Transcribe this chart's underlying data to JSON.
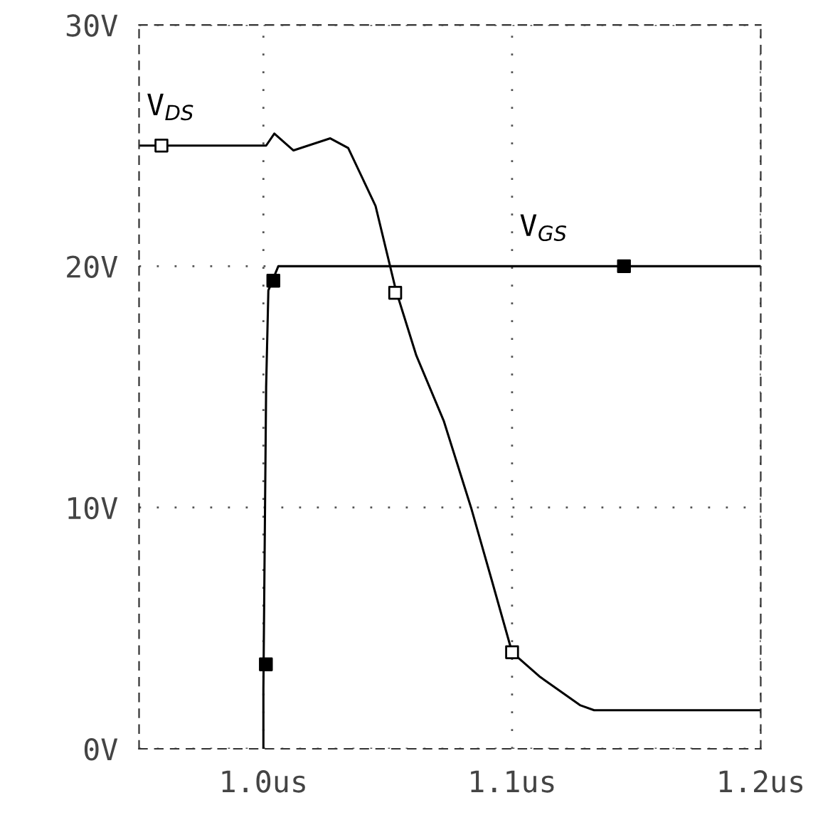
{
  "chart_data": {
    "type": "line",
    "xlim": [
      0.95,
      1.2
    ],
    "ylim": [
      0,
      30
    ],
    "xticks": [
      {
        "value": 1.0,
        "label": "1.0us"
      },
      {
        "value": 1.1,
        "label": "1.1us"
      },
      {
        "value": 1.2,
        "label": "1.2us"
      }
    ],
    "yticks": [
      {
        "value": 0,
        "label": "0V"
      },
      {
        "value": 10,
        "label": "10V"
      },
      {
        "value": 20,
        "label": "20V"
      },
      {
        "value": 30,
        "label": "30V"
      }
    ],
    "grid": true,
    "line_style": "solid",
    "series": [
      {
        "name": "V$_{DS}$",
        "color": "#000000",
        "x": [
          0.95,
          1.0011,
          1.0044,
          1.0121,
          1.0269,
          1.0341,
          1.0451,
          1.0533,
          1.0615,
          1.0725,
          1.0835,
          1.0918,
          1.1,
          1.111,
          1.1275,
          1.133,
          1.2
        ],
        "values": [
          25,
          25,
          25.5,
          24.8,
          25.3,
          24.9,
          22.5,
          19,
          16.3,
          13.6,
          10,
          7,
          4,
          3,
          1.8,
          1.6,
          1.6
        ]
      },
      {
        "name": "V$_{GS}$",
        "color": "#000000",
        "x": [
          1.0,
          1.0,
          1.0011,
          1.002,
          1.006,
          1.1,
          1.2
        ],
        "values": [
          0,
          2.5,
          15,
          19,
          20,
          20,
          20
        ]
      },
      {
        "type": "scatter",
        "marker": "square",
        "color": "#000000",
        "x": [
          0.959,
          1.053,
          1.1
        ],
        "values": [
          25,
          18.9,
          4
        ]
      },
      {
        "type": "scatter",
        "marker": "square",
        "color": "#000000",
        "x": [
          1.001,
          1.004,
          1.145
        ],
        "values": [
          3.5,
          19.4,
          20
        ]
      }
    ]
  }
}
